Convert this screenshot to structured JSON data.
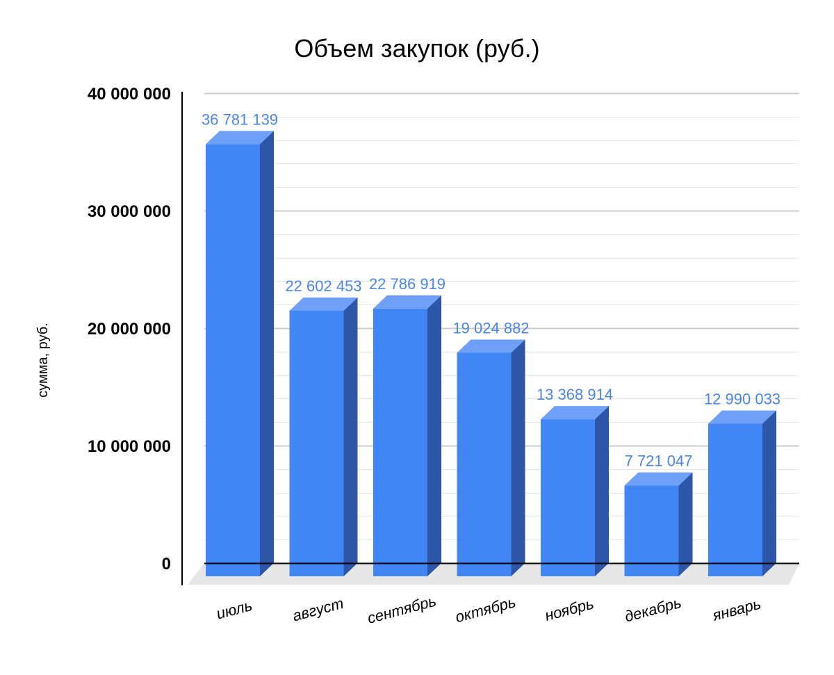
{
  "chart_data": {
    "type": "bar",
    "title": "Объем закупок (руб.)",
    "xlabel": "",
    "ylabel": "сумма, руб.",
    "categories": [
      "июль",
      "август",
      "сентябрь",
      "октябрь",
      "ноябрь",
      "декабрь",
      "январь"
    ],
    "values": [
      36781139,
      22602453,
      22786919,
      19024882,
      13368914,
      7721047,
      12990033
    ],
    "data_labels": [
      "36 781 139",
      "22 602 453",
      "22 786 919",
      "19 024 882",
      "13 368 914",
      "7 721 047",
      "12 990 033"
    ],
    "yticks": [
      0,
      10000000,
      20000000,
      30000000,
      40000000
    ],
    "ytick_labels": [
      "0",
      "10 000 000",
      "20 000 000",
      "30 000 000",
      "40 000 000"
    ],
    "ylim": [
      0,
      40000000
    ],
    "grid": true,
    "legend": "none",
    "style": "3d-column"
  },
  "colors": {
    "bar_front": "#4285f4",
    "bar_top": "#6ea0f7",
    "bar_side": "#2d56a8",
    "data_label": "#4a86e8",
    "gridline_major": "#cccccc",
    "gridline_minor": "#e6e6e6",
    "floor": "#e6e6e6",
    "axis": "#000000"
  }
}
